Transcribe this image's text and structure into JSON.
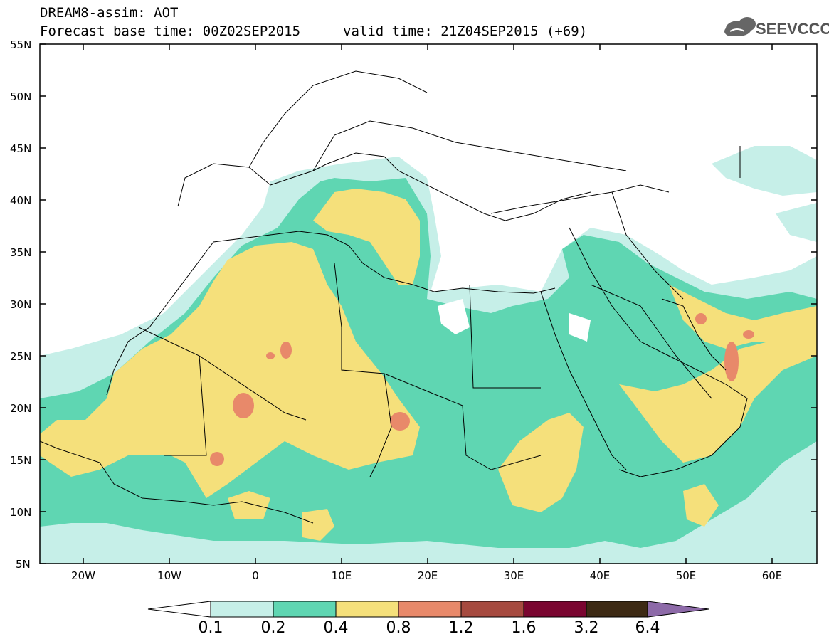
{
  "header": {
    "line1": "DREAM8-assim: AOT",
    "line2_left": "Forecast base time: 00Z02SEP2015",
    "line2_right": "valid time: 21Z04SEP2015 (+69)",
    "logo_text": "SEEVCCC",
    "logo_icon": "cloud-icon"
  },
  "axes": {
    "lat_labels": [
      "55N",
      "50N",
      "45N",
      "40N",
      "35N",
      "30N",
      "25N",
      "20N",
      "15N",
      "10N",
      "5N"
    ],
    "lon_labels": [
      "20W",
      "10W",
      "0",
      "10E",
      "20E",
      "30E",
      "40E",
      "50E",
      "60E"
    ]
  },
  "colorbar": {
    "labels": [
      "0.1",
      "0.2",
      "0.4",
      "0.8",
      "1.2",
      "1.6",
      "3.2",
      "6.4"
    ],
    "colors": [
      "#ffffff",
      "#c6efe8",
      "#5fd6b2",
      "#f5e07b",
      "#e8896a",
      "#a64a3f",
      "#7a0530",
      "#3d2a14",
      "#8d6aa8"
    ]
  },
  "map": {
    "colors": {
      "c01": "#c6efe8",
      "c02": "#5fd6b2",
      "c04": "#f5e07b",
      "c08": "#e8896a",
      "land_border": "#000000"
    }
  }
}
